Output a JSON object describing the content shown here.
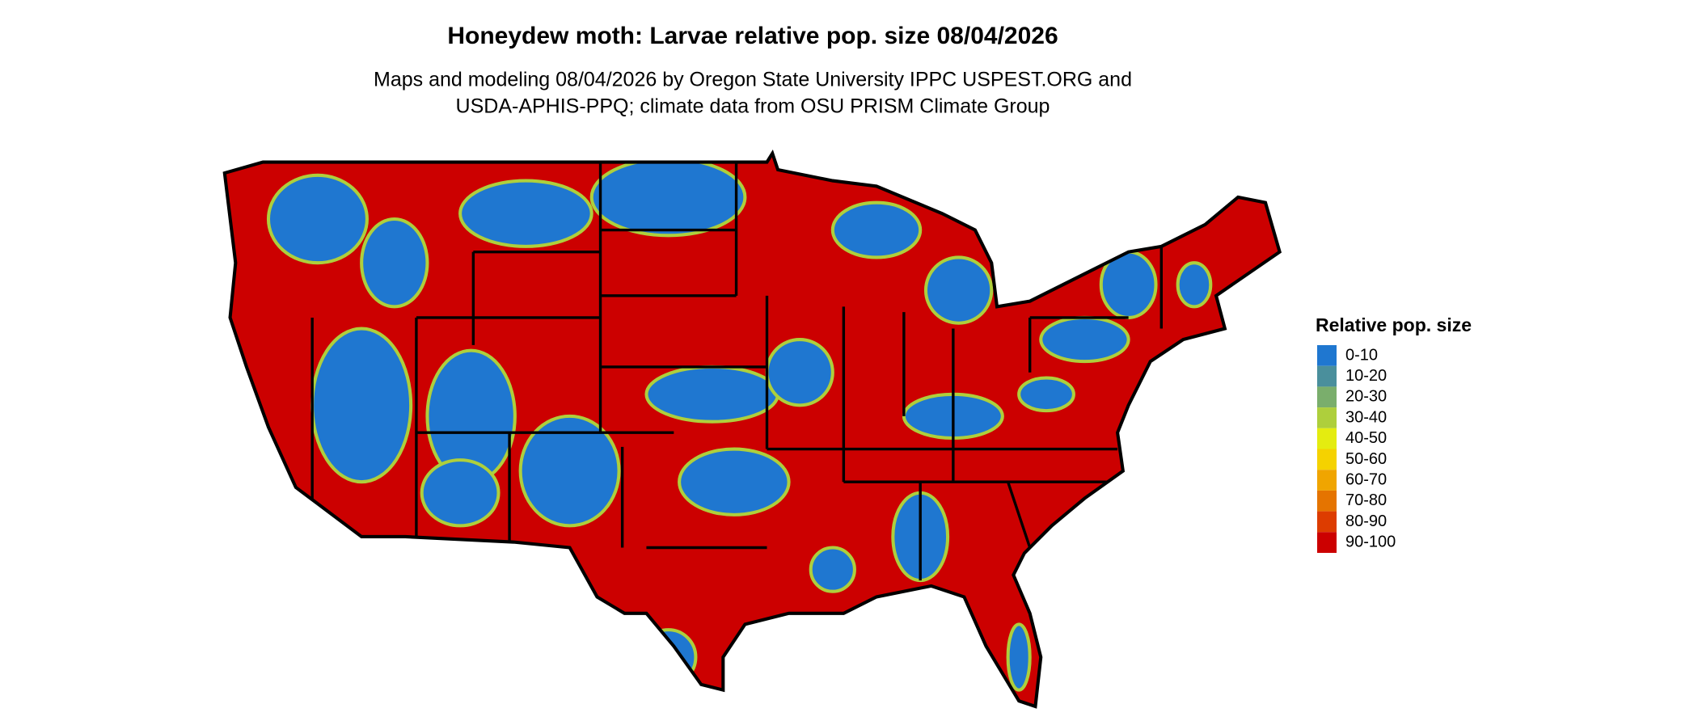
{
  "title": "Honeydew moth: Larvae relative pop. size 08/04/2026",
  "subtitle": [
    "Maps and modeling 08/04/2026 by Oregon State University IPPC USPEST.ORG and",
    "USDA-APHIS-PPQ; climate data from OSU PRISM Climate Group"
  ],
  "legend": {
    "title": "Relative pop. size",
    "items": [
      {
        "label": "0-10",
        "color": "#1f77d0"
      },
      {
        "label": "10-20",
        "color": "#4a8f9c"
      },
      {
        "label": "20-30",
        "color": "#7aae6c"
      },
      {
        "label": "30-40",
        "color": "#aecf3c"
      },
      {
        "label": "40-50",
        "color": "#e4ec10"
      },
      {
        "label": "50-60",
        "color": "#f5d200"
      },
      {
        "label": "60-70",
        "color": "#f0a500"
      },
      {
        "label": "70-80",
        "color": "#e57400"
      },
      {
        "label": "80-90",
        "color": "#dd3c00"
      },
      {
        "label": "90-100",
        "color": "#cc0000"
      }
    ]
  }
}
